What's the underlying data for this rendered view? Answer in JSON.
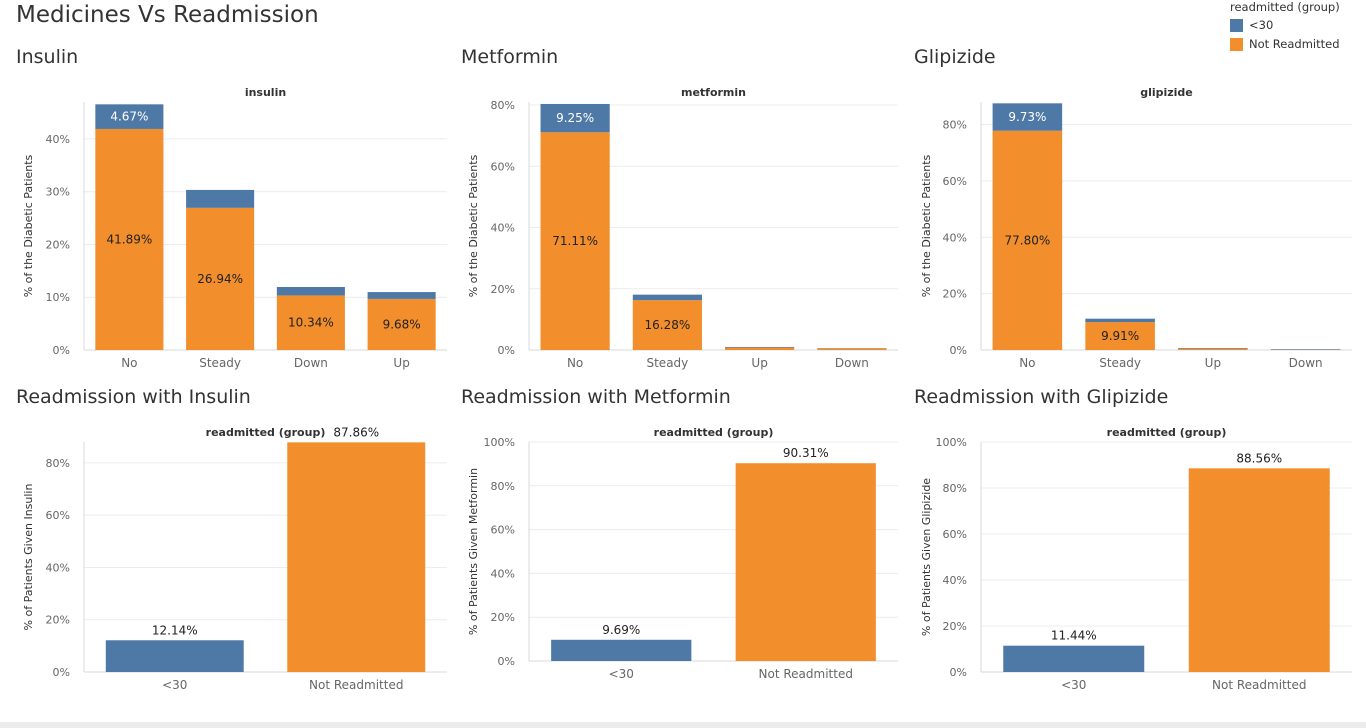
{
  "dashboard": {
    "title": "Medicines Vs Readmission"
  },
  "legend": {
    "title": "readmitted (group)",
    "items": [
      {
        "label": "<30",
        "color": "#4e79a7"
      },
      {
        "label": "Not Readmitted",
        "color": "#f28e2b"
      }
    ]
  },
  "colors": {
    "lt30": "#4e79a7",
    "not_readmitted": "#f28e2b",
    "grid": "#ececec",
    "axis": "#d8d8d8"
  },
  "chart_data": [
    {
      "panel_title": "Insulin",
      "type": "bar",
      "stacked": true,
      "title": "insulin",
      "ylabel": "% of the Diabetic Patients",
      "ylim": [
        0,
        47
      ],
      "yticks": [
        0,
        10,
        20,
        30,
        40
      ],
      "ytick_labels": [
        "0%",
        "10%",
        "20%",
        "30%",
        "40%"
      ],
      "categories": [
        "No",
        "Steady",
        "Down",
        "Up"
      ],
      "series": [
        {
          "name": "Not Readmitted",
          "values": [
            41.89,
            26.94,
            10.34,
            9.68
          ],
          "labels": [
            "41.89%",
            "26.94%",
            "10.34%",
            "9.68%"
          ]
        },
        {
          "name": "<30",
          "values": [
            4.67,
            3.4,
            1.6,
            1.3
          ],
          "labels": [
            "4.67%",
            "",
            "",
            ""
          ]
        }
      ]
    },
    {
      "panel_title": "Metformin",
      "type": "bar",
      "stacked": true,
      "title": "metformin",
      "ylabel": "% of the Diabetic Patients",
      "ylim": [
        0,
        81
      ],
      "yticks": [
        0,
        20,
        40,
        60,
        80
      ],
      "ytick_labels": [
        "0%",
        "20%",
        "40%",
        "60%",
        "80%"
      ],
      "categories": [
        "No",
        "Steady",
        "Up",
        "Down"
      ],
      "series": [
        {
          "name": "Not Readmitted",
          "values": [
            71.11,
            16.28,
            0.8,
            0.5
          ],
          "labels": [
            "71.11%",
            "16.28%",
            "",
            ""
          ]
        },
        {
          "name": "<30",
          "values": [
            9.25,
            1.8,
            0.2,
            0.1
          ],
          "labels": [
            "9.25%",
            "",
            "",
            ""
          ]
        }
      ]
    },
    {
      "panel_title": "Glipizide",
      "type": "bar",
      "stacked": true,
      "title": "glipizide",
      "ylabel": "% of the Diabetic Patients",
      "ylim": [
        0,
        88
      ],
      "yticks": [
        0,
        20,
        40,
        60,
        80
      ],
      "ytick_labels": [
        "0%",
        "20%",
        "40%",
        "60%",
        "80%"
      ],
      "categories": [
        "No",
        "Steady",
        "Up",
        "Down"
      ],
      "series": [
        {
          "name": "Not Readmitted",
          "values": [
            77.8,
            9.91,
            0.5,
            0.1
          ],
          "labels": [
            "77.80%",
            "9.91%",
            "",
            ""
          ]
        },
        {
          "name": "<30",
          "values": [
            9.73,
            1.2,
            0.2,
            0.2
          ],
          "labels": [
            "9.73%",
            "",
            "",
            ""
          ]
        }
      ]
    },
    {
      "panel_title": "Readmission with Insulin",
      "type": "bar",
      "title": "readmitted (group)",
      "ylabel": "% of Patients Given Insulin",
      "ylim": [
        0,
        88
      ],
      "yticks": [
        0,
        20,
        40,
        60,
        80
      ],
      "ytick_labels": [
        "0%",
        "20%",
        "40%",
        "60%",
        "80%"
      ],
      "categories": [
        "<30",
        "Not Readmitted"
      ],
      "values": [
        12.14,
        87.86
      ],
      "labels": [
        "12.14%",
        "87.86%"
      ]
    },
    {
      "panel_title": "Readmission with Metformin",
      "type": "bar",
      "title": "readmitted (group)",
      "ylabel": "% of Patients Given Metformin",
      "ylim": [
        0,
        100
      ],
      "yticks": [
        0,
        20,
        40,
        60,
        80,
        100
      ],
      "ytick_labels": [
        "0%",
        "20%",
        "40%",
        "60%",
        "80%",
        "100%"
      ],
      "categories": [
        "<30",
        "Not Readmitted"
      ],
      "values": [
        9.69,
        90.31
      ],
      "labels": [
        "9.69%",
        "90.31%"
      ]
    },
    {
      "panel_title": "Readmission with Glipizide",
      "type": "bar",
      "title": "readmitted (group)",
      "ylabel": "% of Patients Given Glipizide",
      "ylim": [
        0,
        100
      ],
      "yticks": [
        0,
        20,
        40,
        60,
        80,
        100
      ],
      "ytick_labels": [
        "0%",
        "20%",
        "40%",
        "60%",
        "80%",
        "100%"
      ],
      "categories": [
        "<30",
        "Not Readmitted"
      ],
      "values": [
        11.44,
        88.56
      ],
      "labels": [
        "11.44%",
        "88.56%"
      ]
    }
  ]
}
